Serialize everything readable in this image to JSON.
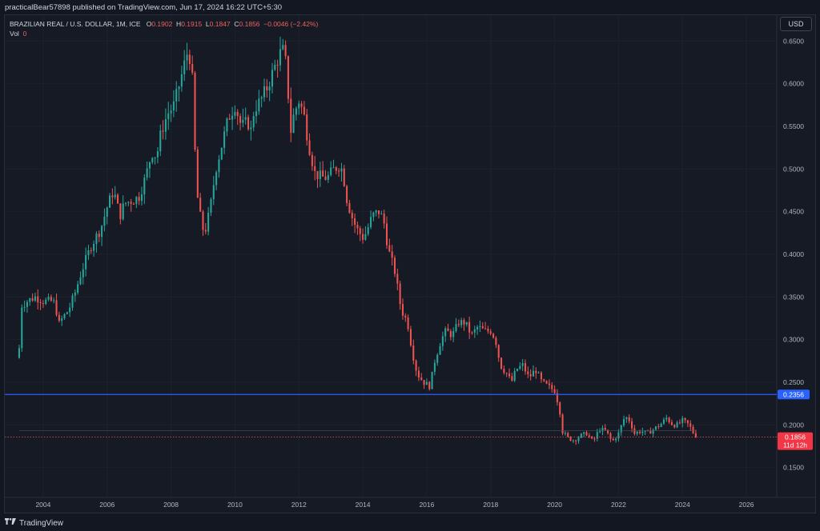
{
  "header": {
    "publisher_text": "practicalBear57898 published on TradingView.com, Jun 17, 2024 16:22 UTC+5:30"
  },
  "legend": {
    "symbol": "BRAZILIAN REAL / U.S. DOLLAR, 1M, ICE",
    "open_key": "O",
    "open_value": "0.1902",
    "high_key": "H",
    "high_value": "0.1915",
    "low_key": "L",
    "low_value": "0.1847",
    "close_key": "C",
    "close_value": "0.1856",
    "change_value": "−0.0046 (−2.42%)",
    "vol_key": "Vol",
    "vol_value": "0"
  },
  "currency_button": "USD",
  "footer": {
    "brand": "TradingView",
    "logo_icon": "tradingview-logo-icon"
  },
  "colors": {
    "up": "#26a69a",
    "down": "#ef5350",
    "horizontal_line": "#2962ff",
    "price_badge": "#f23645",
    "background": "#161a25"
  },
  "chart_data": {
    "type": "candlestick",
    "title": "BRAZILIAN REAL / U.S. DOLLAR, 1M, ICE",
    "y_ticks": [
      "0.6500",
      "0.6000",
      "0.5500",
      "0.5000",
      "0.4500",
      "0.4000",
      "0.3500",
      "0.3000",
      "0.2500",
      "0.2000",
      "0.1500"
    ],
    "ylim": [
      0.1168,
      0.6793
    ],
    "x_ticks": [
      "2004",
      "2006",
      "2008",
      "2010",
      "2012",
      "2014",
      "2016",
      "2018",
      "2020",
      "2022",
      "2024",
      "2026"
    ],
    "xlim": [
      2002.8,
      2026.95
    ],
    "horizontal_line": {
      "value": 0.2356,
      "label": "0.2356"
    },
    "last_price": {
      "value": 0.1856,
      "label": "0.1856",
      "countdown": "11d 12h"
    },
    "anchors": [
      [
        2003.25,
        0.29
      ],
      [
        2003.33,
        0.34
      ],
      [
        2003.5,
        0.345
      ],
      [
        2003.75,
        0.35
      ],
      [
        2004.0,
        0.345
      ],
      [
        2004.25,
        0.345
      ],
      [
        2004.4,
        0.342
      ],
      [
        2004.45,
        0.315
      ],
      [
        2004.6,
        0.325
      ],
      [
        2004.8,
        0.335
      ],
      [
        2005.0,
        0.355
      ],
      [
        2005.2,
        0.38
      ],
      [
        2005.5,
        0.41
      ],
      [
        2005.8,
        0.43
      ],
      [
        2006.0,
        0.455
      ],
      [
        2006.2,
        0.475
      ],
      [
        2006.4,
        0.445
      ],
      [
        2006.55,
        0.46
      ],
      [
        2006.7,
        0.462
      ],
      [
        2006.9,
        0.465
      ],
      [
        2007.0,
        0.468
      ],
      [
        2007.2,
        0.49
      ],
      [
        2007.4,
        0.52
      ],
      [
        2007.55,
        0.515
      ],
      [
        2007.7,
        0.545
      ],
      [
        2007.9,
        0.565
      ],
      [
        2008.1,
        0.575
      ],
      [
        2008.3,
        0.605
      ],
      [
        2008.5,
        0.635
      ],
      [
        2008.62,
        0.63
      ],
      [
        2008.7,
        0.585
      ],
      [
        2008.75,
        0.52
      ],
      [
        2008.85,
        0.455
      ],
      [
        2009.0,
        0.43
      ],
      [
        2009.1,
        0.43
      ],
      [
        2009.25,
        0.46
      ],
      [
        2009.4,
        0.5
      ],
      [
        2009.6,
        0.53
      ],
      [
        2009.8,
        0.56
      ],
      [
        2010.0,
        0.575
      ],
      [
        2010.2,
        0.55
      ],
      [
        2010.4,
        0.555
      ],
      [
        2010.5,
        0.545
      ],
      [
        2010.6,
        0.57
      ],
      [
        2010.8,
        0.58
      ],
      [
        2011.0,
        0.595
      ],
      [
        2011.2,
        0.615
      ],
      [
        2011.4,
        0.635
      ],
      [
        2011.55,
        0.64
      ],
      [
        2011.65,
        0.595
      ],
      [
        2011.75,
        0.545
      ],
      [
        2011.85,
        0.565
      ],
      [
        2012.0,
        0.58
      ],
      [
        2012.15,
        0.565
      ],
      [
        2012.3,
        0.53
      ],
      [
        2012.5,
        0.495
      ],
      [
        2012.7,
        0.49
      ],
      [
        2012.9,
        0.49
      ],
      [
        2013.1,
        0.5
      ],
      [
        2013.3,
        0.505
      ],
      [
        2013.4,
        0.49
      ],
      [
        2013.5,
        0.465
      ],
      [
        2013.65,
        0.445
      ],
      [
        2013.8,
        0.43
      ],
      [
        2014.0,
        0.42
      ],
      [
        2014.1,
        0.425
      ],
      [
        2014.3,
        0.445
      ],
      [
        2014.5,
        0.45
      ],
      [
        2014.65,
        0.44
      ],
      [
        2014.8,
        0.405
      ],
      [
        2015.0,
        0.38
      ],
      [
        2015.2,
        0.335
      ],
      [
        2015.4,
        0.32
      ],
      [
        2015.55,
        0.285
      ],
      [
        2015.7,
        0.26
      ],
      [
        2015.9,
        0.25
      ],
      [
        2016.1,
        0.245
      ],
      [
        2016.25,
        0.275
      ],
      [
        2016.45,
        0.3
      ],
      [
        2016.6,
        0.31
      ],
      [
        2016.8,
        0.305
      ],
      [
        2017.0,
        0.32
      ],
      [
        2017.2,
        0.32
      ],
      [
        2017.4,
        0.305
      ],
      [
        2017.6,
        0.315
      ],
      [
        2017.8,
        0.31
      ],
      [
        2018.0,
        0.31
      ],
      [
        2018.15,
        0.3
      ],
      [
        2018.3,
        0.27
      ],
      [
        2018.5,
        0.26
      ],
      [
        2018.65,
        0.25
      ],
      [
        2018.8,
        0.265
      ],
      [
        2019.0,
        0.27
      ],
      [
        2019.2,
        0.255
      ],
      [
        2019.4,
        0.265
      ],
      [
        2019.6,
        0.25
      ],
      [
        2019.8,
        0.245
      ],
      [
        2020.0,
        0.24
      ],
      [
        2020.15,
        0.22
      ],
      [
        2020.25,
        0.192
      ],
      [
        2020.4,
        0.185
      ],
      [
        2020.6,
        0.182
      ],
      [
        2020.8,
        0.187
      ],
      [
        2021.0,
        0.19
      ],
      [
        2021.2,
        0.18
      ],
      [
        2021.4,
        0.195
      ],
      [
        2021.6,
        0.193
      ],
      [
        2021.8,
        0.18
      ],
      [
        2022.0,
        0.19
      ],
      [
        2022.2,
        0.21
      ],
      [
        2022.35,
        0.205
      ],
      [
        2022.5,
        0.19
      ],
      [
        2022.7,
        0.193
      ],
      [
        2022.9,
        0.19
      ],
      [
        2023.1,
        0.195
      ],
      [
        2023.3,
        0.2
      ],
      [
        2023.5,
        0.208
      ],
      [
        2023.7,
        0.2
      ],
      [
        2023.85,
        0.2
      ],
      [
        2024.0,
        0.205
      ],
      [
        2024.2,
        0.2
      ],
      [
        2024.35,
        0.19
      ],
      [
        2024.45,
        0.1856
      ]
    ]
  }
}
